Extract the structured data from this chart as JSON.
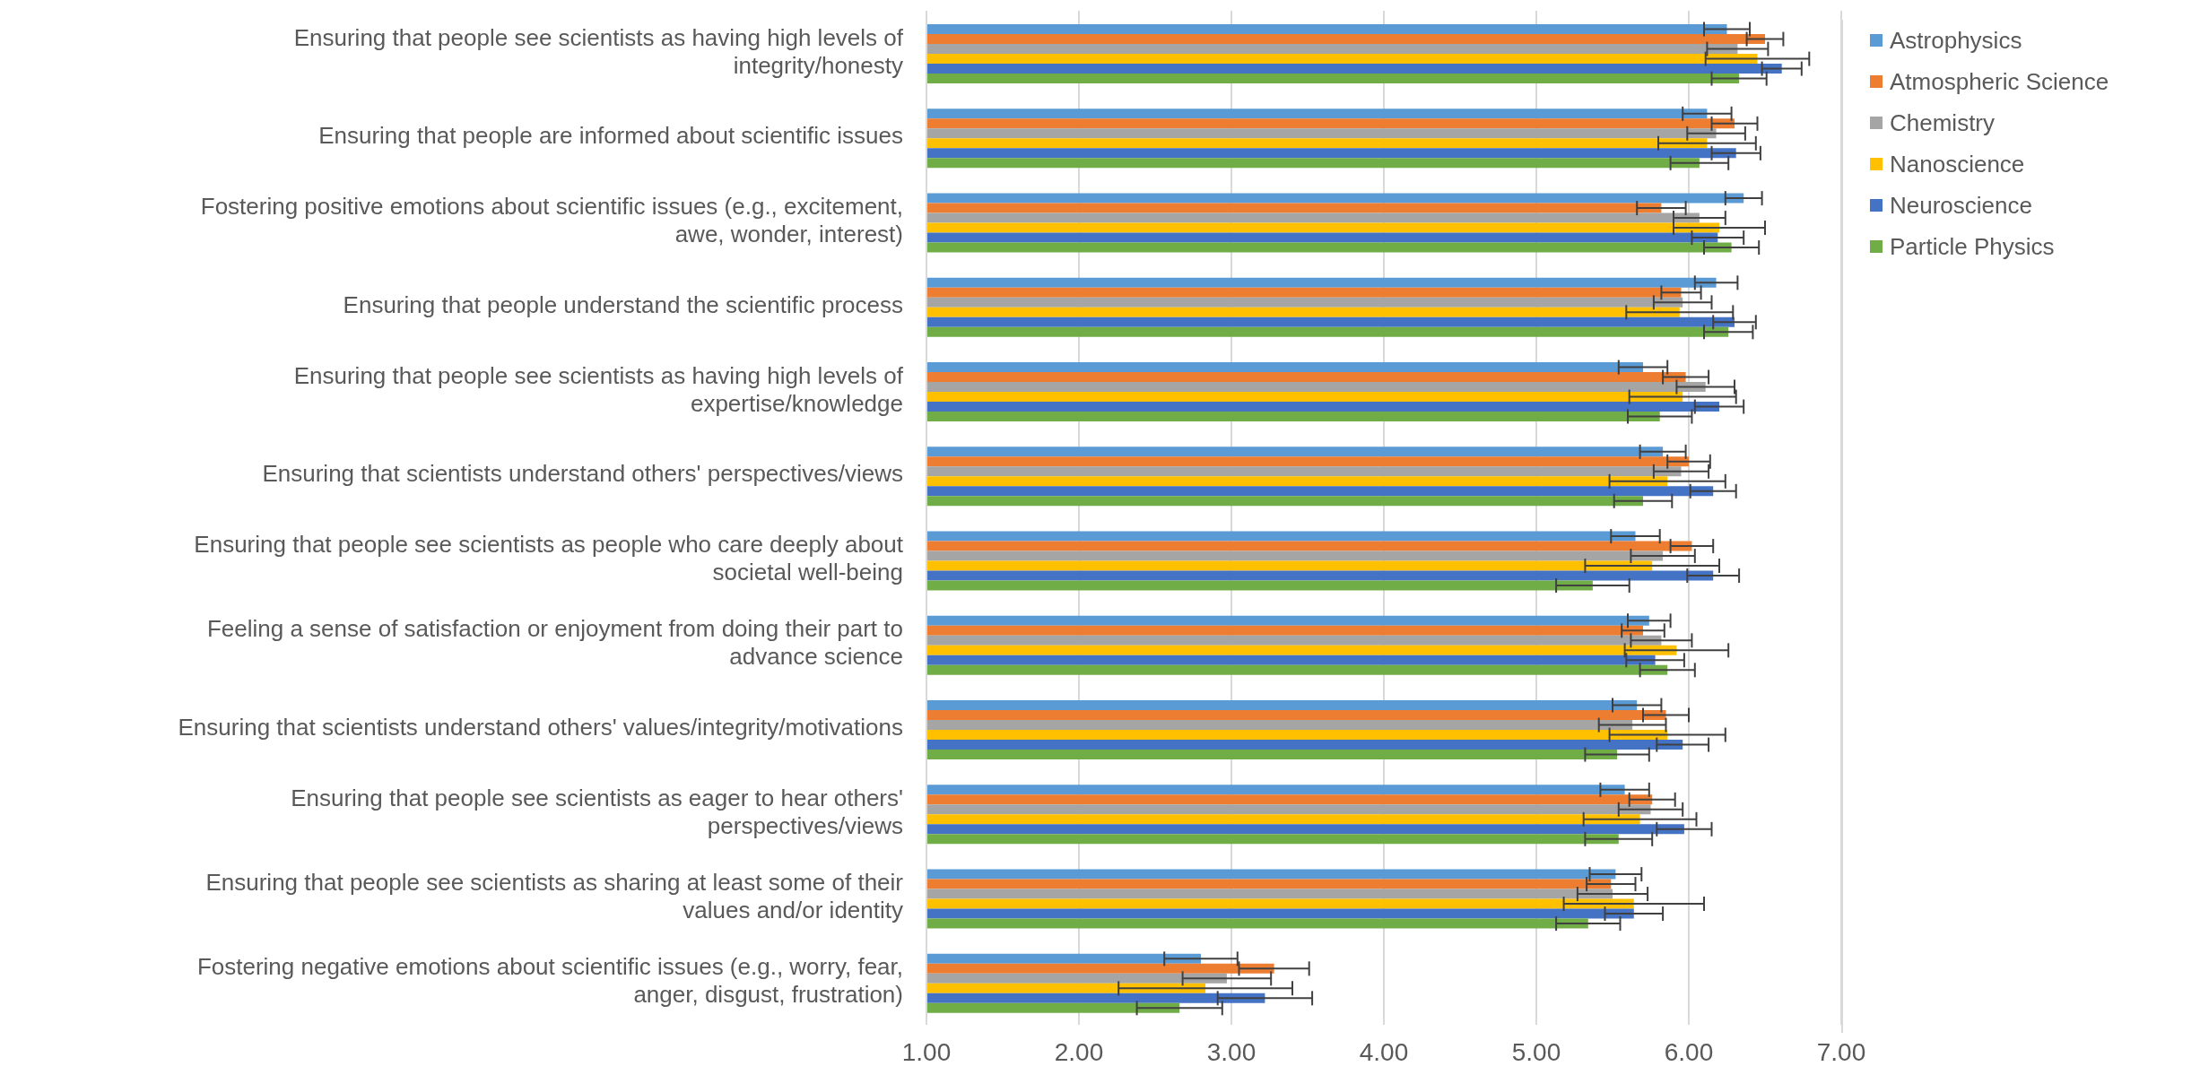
{
  "chart_data": {
    "type": "bar",
    "orientation": "horizontal",
    "categories": [
      "Ensuring that people see scientists as having high levels of integrity/honesty",
      "Ensuring that people are informed about scientific issues",
      "Fostering positive emotions about scientific issues (e.g., excitement, awe, wonder, interest)",
      "Ensuring that people understand the scientific process",
      "Ensuring that people see scientists as having high levels of expertise/knowledge",
      "Ensuring that scientists understand others' perspectives/views",
      "Ensuring that people see scientists as people who care deeply about societal well-being",
      "Feeling a sense of satisfaction or enjoyment from doing their part to advance science",
      "Ensuring that scientists understand others' values/integrity/motivations",
      "Ensuring that people see scientists as eager to hear others' perspectives/views",
      "Ensuring that people see scientists as sharing at least some of their values and/or identity",
      "Fostering negative emotions about scientific issues (e.g., worry, fear, anger, disgust, frustration)"
    ],
    "series": [
      {
        "name": "Astrophysics",
        "color": "#5b9bd5",
        "values": [
          6.25,
          6.12,
          6.36,
          6.18,
          5.7,
          5.83,
          5.65,
          5.74,
          5.66,
          5.58,
          5.52,
          2.8
        ],
        "errors": [
          0.15,
          0.16,
          0.12,
          0.14,
          0.16,
          0.15,
          0.16,
          0.14,
          0.16,
          0.16,
          0.17,
          0.24
        ]
      },
      {
        "name": "Atmospheric Science",
        "color": "#ed7d31",
        "values": [
          6.5,
          6.3,
          5.82,
          5.95,
          5.98,
          6.0,
          6.02,
          5.7,
          5.85,
          5.76,
          5.49,
          3.28
        ],
        "errors": [
          0.12,
          0.15,
          0.16,
          0.13,
          0.15,
          0.14,
          0.14,
          0.14,
          0.15,
          0.15,
          0.16,
          0.23
        ]
      },
      {
        "name": "Chemistry",
        "color": "#a5a5a5",
        "values": [
          6.32,
          6.18,
          6.07,
          5.96,
          6.11,
          5.95,
          5.83,
          5.82,
          5.63,
          5.75,
          5.5,
          2.97
        ],
        "errors": [
          0.2,
          0.19,
          0.17,
          0.19,
          0.19,
          0.18,
          0.21,
          0.2,
          0.22,
          0.21,
          0.23,
          0.29
        ]
      },
      {
        "name": "Nanoscience",
        "color": "#ffc000",
        "values": [
          6.45,
          6.12,
          6.2,
          5.94,
          5.96,
          5.86,
          5.76,
          5.92,
          5.86,
          5.68,
          5.64,
          2.83
        ],
        "errors": [
          0.34,
          0.32,
          0.3,
          0.35,
          0.35,
          0.38,
          0.44,
          0.34,
          0.38,
          0.37,
          0.46,
          0.57
        ]
      },
      {
        "name": "Neuroscience",
        "color": "#4472c4",
        "values": [
          6.61,
          6.31,
          6.19,
          6.3,
          6.2,
          6.16,
          6.16,
          5.78,
          5.96,
          5.97,
          5.64,
          3.22
        ],
        "errors": [
          0.13,
          0.16,
          0.17,
          0.14,
          0.16,
          0.15,
          0.17,
          0.19,
          0.17,
          0.18,
          0.19,
          0.31
        ]
      },
      {
        "name": "Particle Physics",
        "color": "#70ad47",
        "values": [
          6.33,
          6.07,
          6.28,
          6.26,
          5.81,
          5.7,
          5.37,
          5.86,
          5.53,
          5.54,
          5.34,
          2.66
        ],
        "errors": [
          0.18,
          0.19,
          0.18,
          0.16,
          0.21,
          0.19,
          0.24,
          0.18,
          0.21,
          0.22,
          0.21,
          0.28
        ]
      }
    ],
    "xlim": [
      1,
      7
    ],
    "xticks": [
      {
        "value": 1,
        "label": "1.00"
      },
      {
        "value": 2,
        "label": "2.00"
      },
      {
        "value": 3,
        "label": "3.00"
      },
      {
        "value": 4,
        "label": "4.00"
      },
      {
        "value": 5,
        "label": "5.00"
      },
      {
        "value": 6,
        "label": "6.00"
      },
      {
        "value": 7,
        "label": "7.00"
      }
    ],
    "grid": "x",
    "legend": "top right"
  }
}
